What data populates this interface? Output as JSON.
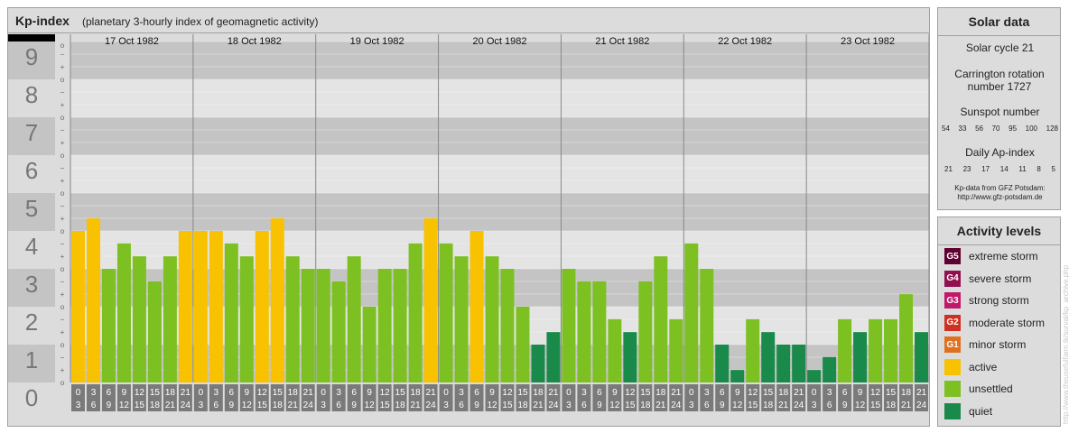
{
  "title": {
    "main": "Kp-index",
    "subtitle": "(planetary 3-hourly index of geomagnetic activity)"
  },
  "chart_data": {
    "type": "bar",
    "title": "Kp-index",
    "ylim": [
      0,
      9
    ],
    "y_ticks": [
      "0",
      "1",
      "2",
      "3",
      "4",
      "5",
      "6",
      "7",
      "8",
      "9"
    ],
    "minor_marks": [
      "o",
      "+",
      "−"
    ],
    "days": [
      "17 Oct 1982",
      "18 Oct 1982",
      "19 Oct 1982",
      "20 Oct 1982",
      "21 Oct 1982",
      "22 Oct 1982",
      "23 Oct 1982"
    ],
    "slots": [
      [
        "0",
        "3"
      ],
      [
        "3",
        "6"
      ],
      [
        "6",
        "9"
      ],
      [
        "9",
        "12"
      ],
      [
        "12",
        "15"
      ],
      [
        "15",
        "18"
      ],
      [
        "18",
        "21"
      ],
      [
        "21",
        "24"
      ]
    ],
    "values": [
      [
        4.0,
        4.33,
        3.0,
        3.67,
        3.33,
        2.67,
        3.33,
        4.0
      ],
      [
        4.0,
        4.0,
        3.67,
        3.33,
        4.0,
        4.33,
        3.33,
        3.0
      ],
      [
        3.0,
        2.67,
        3.33,
        2.0,
        3.0,
        3.0,
        3.67,
        4.33
      ],
      [
        3.67,
        3.33,
        4.0,
        3.33,
        3.0,
        2.0,
        1.0,
        1.33
      ],
      [
        3.0,
        2.67,
        2.67,
        1.67,
        1.33,
        2.67,
        3.33,
        1.67
      ],
      [
        3.67,
        3.0,
        1.0,
        0.33,
        1.67,
        1.33,
        1.0,
        1.0
      ],
      [
        0.33,
        0.67,
        1.67,
        1.33,
        1.67,
        1.67,
        2.33,
        1.33
      ]
    ]
  },
  "colors": {
    "quiet": "#1a8a4a",
    "unsettled": "#7dc022",
    "active": "#f8c200",
    "G1": "#e07020",
    "G2": "#d03020",
    "G3": "#c0186a",
    "G4": "#901050",
    "G5": "#600030"
  },
  "solar": {
    "title": "Solar data",
    "cycle": "Solar cycle 21",
    "carrington": "Carrington rotation number 1727",
    "sunspot_label": "Sunspot number",
    "sunspot_values": [
      "54",
      "33",
      "56",
      "70",
      "95",
      "100",
      "128"
    ],
    "ap_label": "Daily Ap-index",
    "ap_values": [
      "21",
      "23",
      "17",
      "14",
      "11",
      "8",
      "5"
    ],
    "source_line1": "Kp-data from GFZ Potsdam:",
    "source_line2": "http://www.gfz-potsdam.de"
  },
  "activity": {
    "title": "Activity levels",
    "items": [
      {
        "badge": "G5",
        "label": "extreme storm",
        "color": "#600030"
      },
      {
        "badge": "G4",
        "label": "severe storm",
        "color": "#901050"
      },
      {
        "badge": "G3",
        "label": "strong storm",
        "color": "#c0186a"
      },
      {
        "badge": "G2",
        "label": "moderate storm",
        "color": "#d03020"
      },
      {
        "badge": "G1",
        "label": "minor storm",
        "color": "#e07020"
      },
      {
        "badge": "",
        "label": "active",
        "color": "#f8c200"
      },
      {
        "badge": "",
        "label": "unsettled",
        "color": "#7dc022"
      },
      {
        "badge": "",
        "label": "quiet",
        "color": "#1a8a4a"
      }
    ]
  },
  "watermark": "http://www.theusefulfarm.tk/surval/kp_archive.php"
}
